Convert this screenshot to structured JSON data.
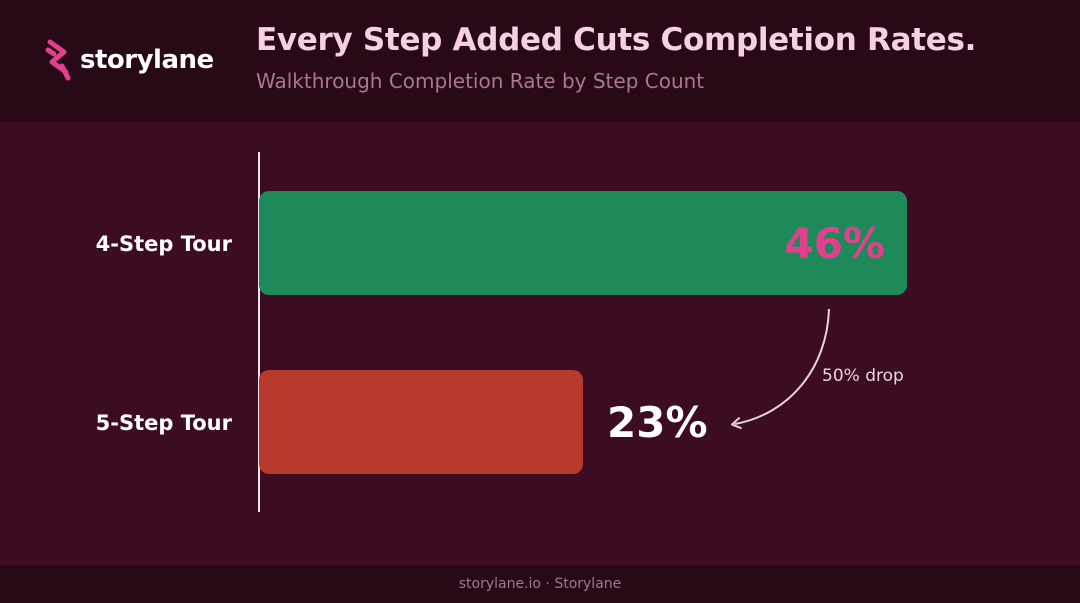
{
  "brand": {
    "name": "storylane",
    "accent": "#e0408e"
  },
  "header": {
    "title": "Every Step Added Cuts Completion Rates.",
    "subtitle": "Walkthrough Completion Rate by Step Count"
  },
  "footer": {
    "text": "storylane.io · Storylane"
  },
  "chart_data": {
    "type": "bar",
    "orientation": "horizontal",
    "categories": [
      "4-Step Tour",
      "5-Step Tour"
    ],
    "values": [
      46,
      23
    ],
    "value_labels": [
      "46%",
      "23%"
    ],
    "colors": [
      "#1e8a5a",
      "#b83a2c"
    ],
    "value_label_colors": [
      "#e0408e",
      "#ffffff"
    ],
    "xlim": [
      0,
      46
    ],
    "grid": false,
    "legend": "none",
    "annotation": {
      "text": "50% drop",
      "from": "4-Step Tour",
      "to": "5-Step Tour"
    }
  }
}
